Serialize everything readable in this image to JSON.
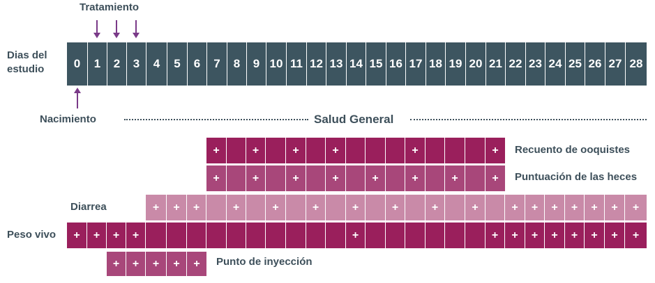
{
  "header": {
    "treatment_label": "Tratamiento",
    "days_label": "Dias del estudio",
    "birth_label": "Nacimiento",
    "general_label": "Salud General"
  },
  "days": [
    "0",
    "1",
    "2",
    "3",
    "4",
    "5",
    "6",
    "7",
    "8",
    "9",
    "10",
    "11",
    "12",
    "13",
    "14",
    "15",
    "16",
    "17",
    "18",
    "19",
    "20",
    "21",
    "22",
    "23",
    "24",
    "25",
    "26",
    "27",
    "28"
  ],
  "treatment_days": [
    1,
    2,
    3
  ],
  "colors": {
    "day_bar": "#3d5560",
    "dark": "#9a1f5c",
    "medium": "#a8477a",
    "light": "#c98aa8",
    "arrow": "#7a3a88",
    "text": "#3d4f5a"
  },
  "mark_symbol": "+",
  "rows": [
    {
      "id": "oocyst",
      "label": "Recuento de ooquistes",
      "label_side": "right",
      "start": 7,
      "end": 21,
      "color": "dark",
      "marks": [
        7,
        9,
        11,
        13,
        17,
        21
      ]
    },
    {
      "id": "feces",
      "label": "Puntuación de las heces",
      "label_side": "right",
      "start": 7,
      "end": 21,
      "color": "medium",
      "marks": [
        7,
        9,
        11,
        13,
        15,
        17,
        19,
        21
      ]
    },
    {
      "id": "diarrhea",
      "label": "Diarrea",
      "label_side": "left",
      "start": 4,
      "end": 28,
      "color": "light",
      "marks": [
        4,
        5,
        6,
        8,
        10,
        12,
        14,
        16,
        18,
        20,
        22,
        23,
        24,
        25,
        26,
        27,
        28
      ]
    },
    {
      "id": "weight",
      "label": "Peso vivo",
      "label_side": "left",
      "start": 0,
      "end": 28,
      "color": "dark",
      "marks": [
        0,
        1,
        2,
        3,
        14,
        21,
        22,
        23,
        24,
        25,
        26,
        27,
        28
      ]
    },
    {
      "id": "injection",
      "label": "Punto de inyección",
      "label_side": "right",
      "start": 2,
      "end": 6,
      "color": "medium",
      "marks": [
        2,
        3,
        4,
        5,
        6
      ]
    }
  ]
}
